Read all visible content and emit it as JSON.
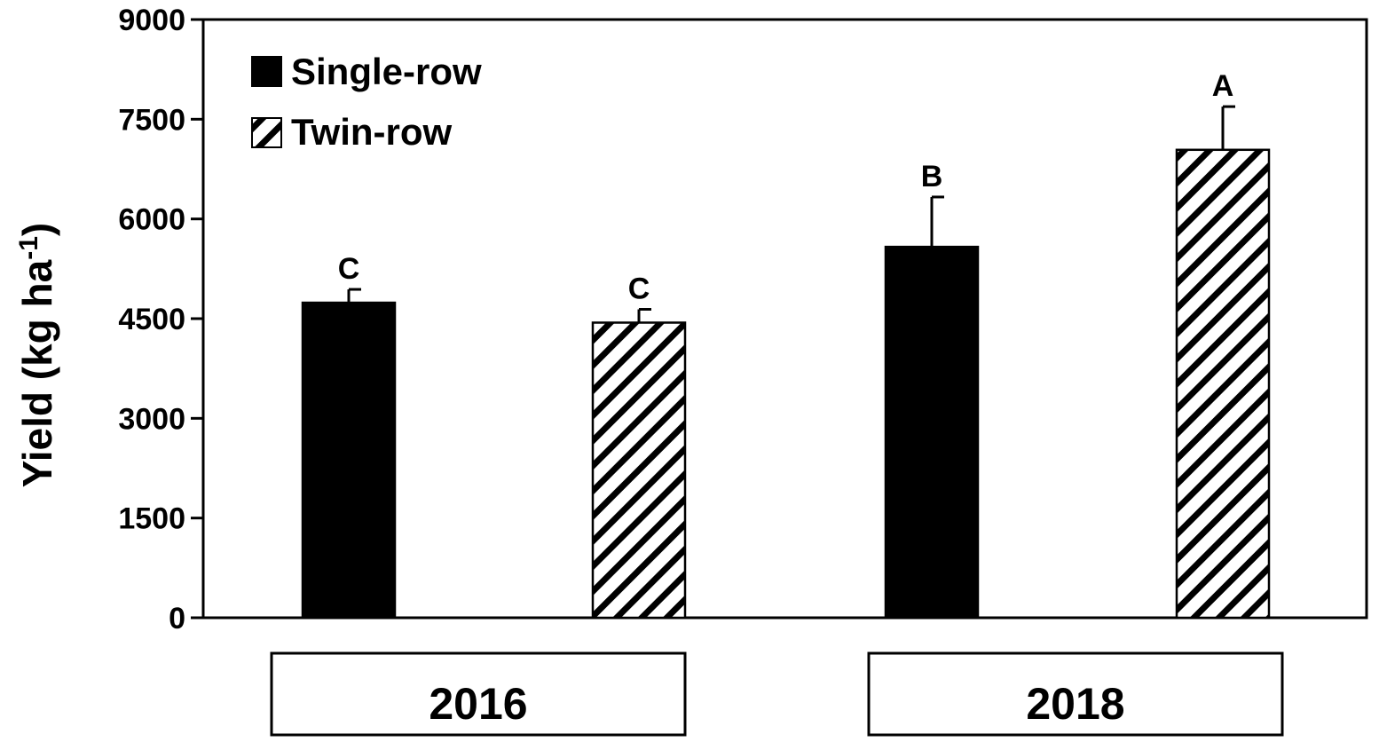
{
  "chart_data": {
    "type": "bar",
    "title": "",
    "xlabel": "",
    "ylabel": "Yield (kg ha",
    "ylabel_superscript": "-1",
    "ylabel_close": ")",
    "ylim": [
      0,
      9000
    ],
    "yticks": [
      "0",
      "1500",
      "3000",
      "4500",
      "6000",
      "7500",
      "9000"
    ],
    "ytick_values": [
      0,
      1500,
      3000,
      4500,
      6000,
      7500,
      9000
    ],
    "categories": [
      "2016",
      "2018"
    ],
    "series": [
      {
        "name": "Single-row",
        "pattern": "solid",
        "color": "#000000",
        "values": [
          4740,
          5580
        ],
        "errors": [
          200,
          750
        ],
        "letters": [
          "C",
          "B"
        ]
      },
      {
        "name": "Twin-row",
        "pattern": "hatch",
        "color": "#000000",
        "values": [
          4440,
          7040
        ],
        "errors": [
          200,
          650
        ],
        "letters": [
          "C",
          "A"
        ]
      }
    ],
    "legend_position": "top-left",
    "grid": false
  }
}
